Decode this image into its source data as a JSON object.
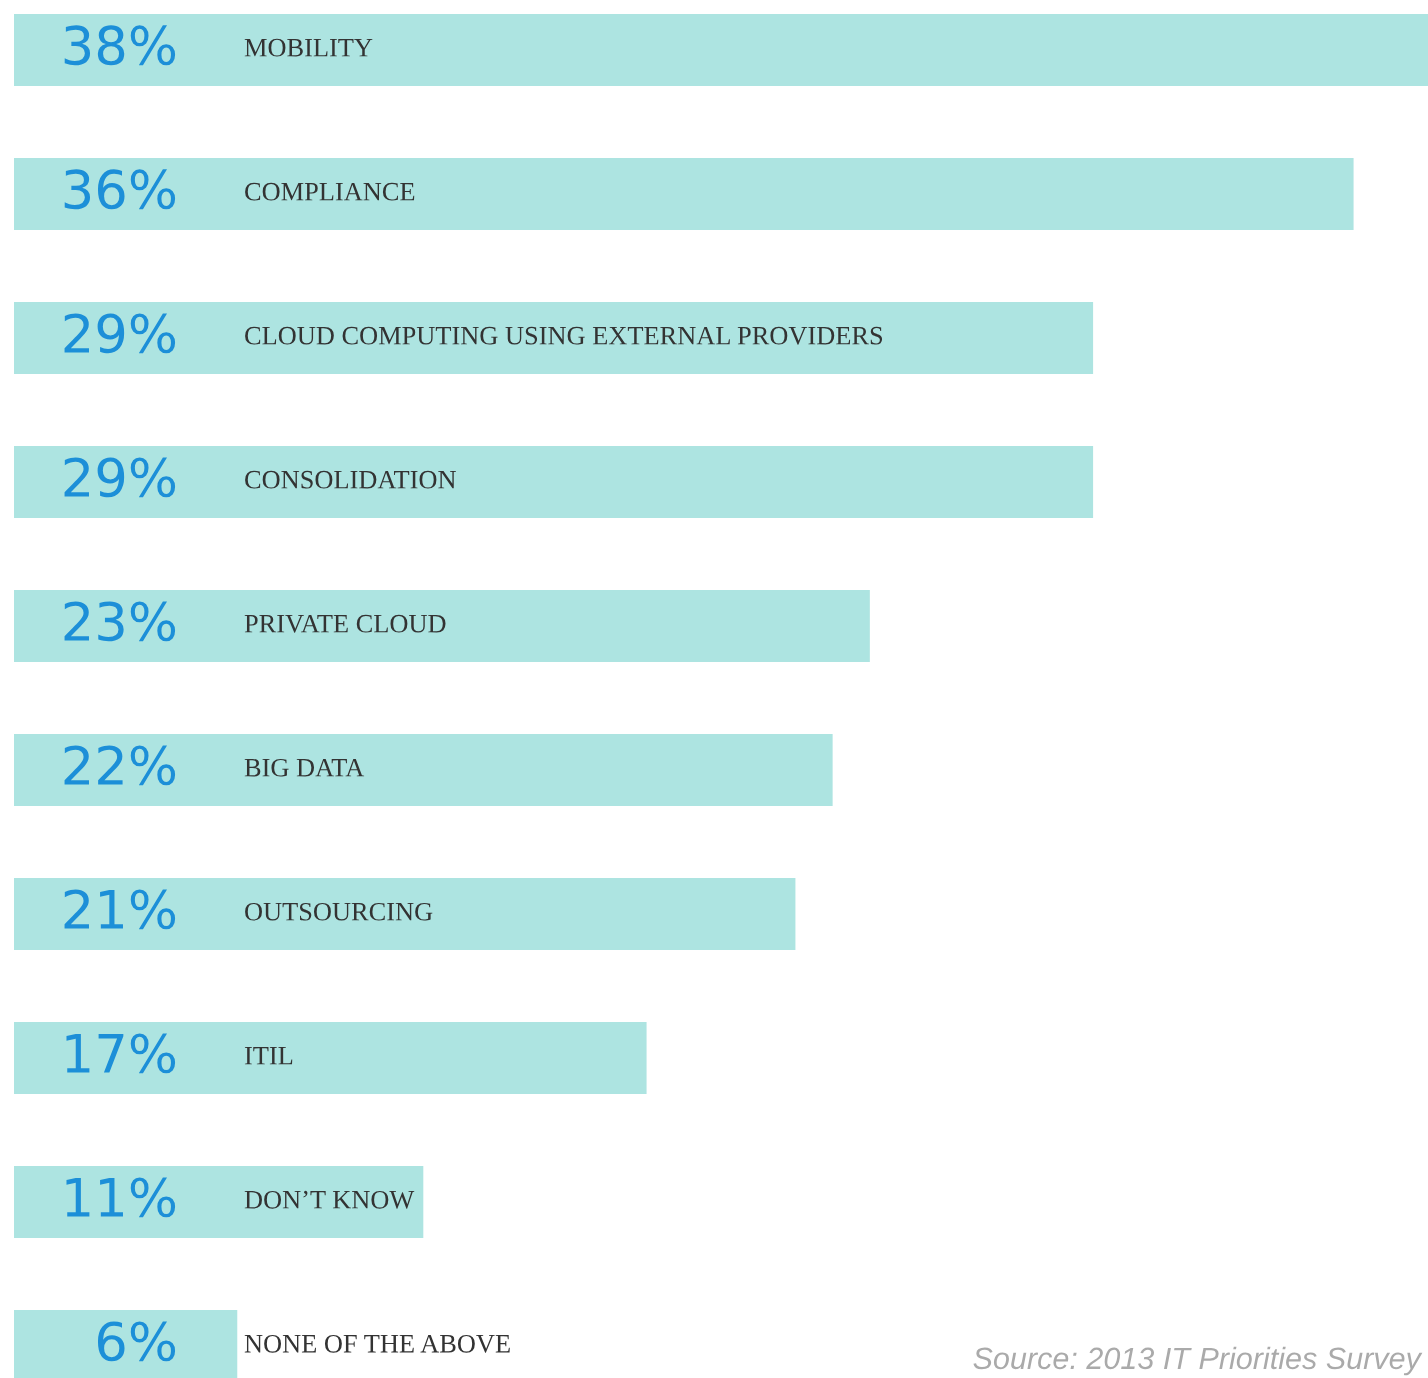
{
  "chart_data": {
    "type": "bar",
    "orientation": "horizontal",
    "categories": [
      "MOBILITY",
      "COMPLIANCE",
      "CLOUD COMPUTING USING EXTERNAL PROVIDERS",
      "CONSOLIDATION",
      "PRIVATE CLOUD",
      "BIG DATA",
      "OUTSOURCING",
      "ITIL",
      "DON’T KNOW",
      "NONE OF THE ABOVE"
    ],
    "values": [
      38,
      36,
      29,
      29,
      23,
      22,
      21,
      17,
      11,
      6
    ],
    "value_labels": [
      "38%",
      "36%",
      "29%",
      "29%",
      "23%",
      "22%",
      "21%",
      "17%",
      "11%",
      "6%"
    ],
    "color": "#ade4e1",
    "annotations": [
      "Source: 2013 IT Priorities Survey"
    ]
  }
}
